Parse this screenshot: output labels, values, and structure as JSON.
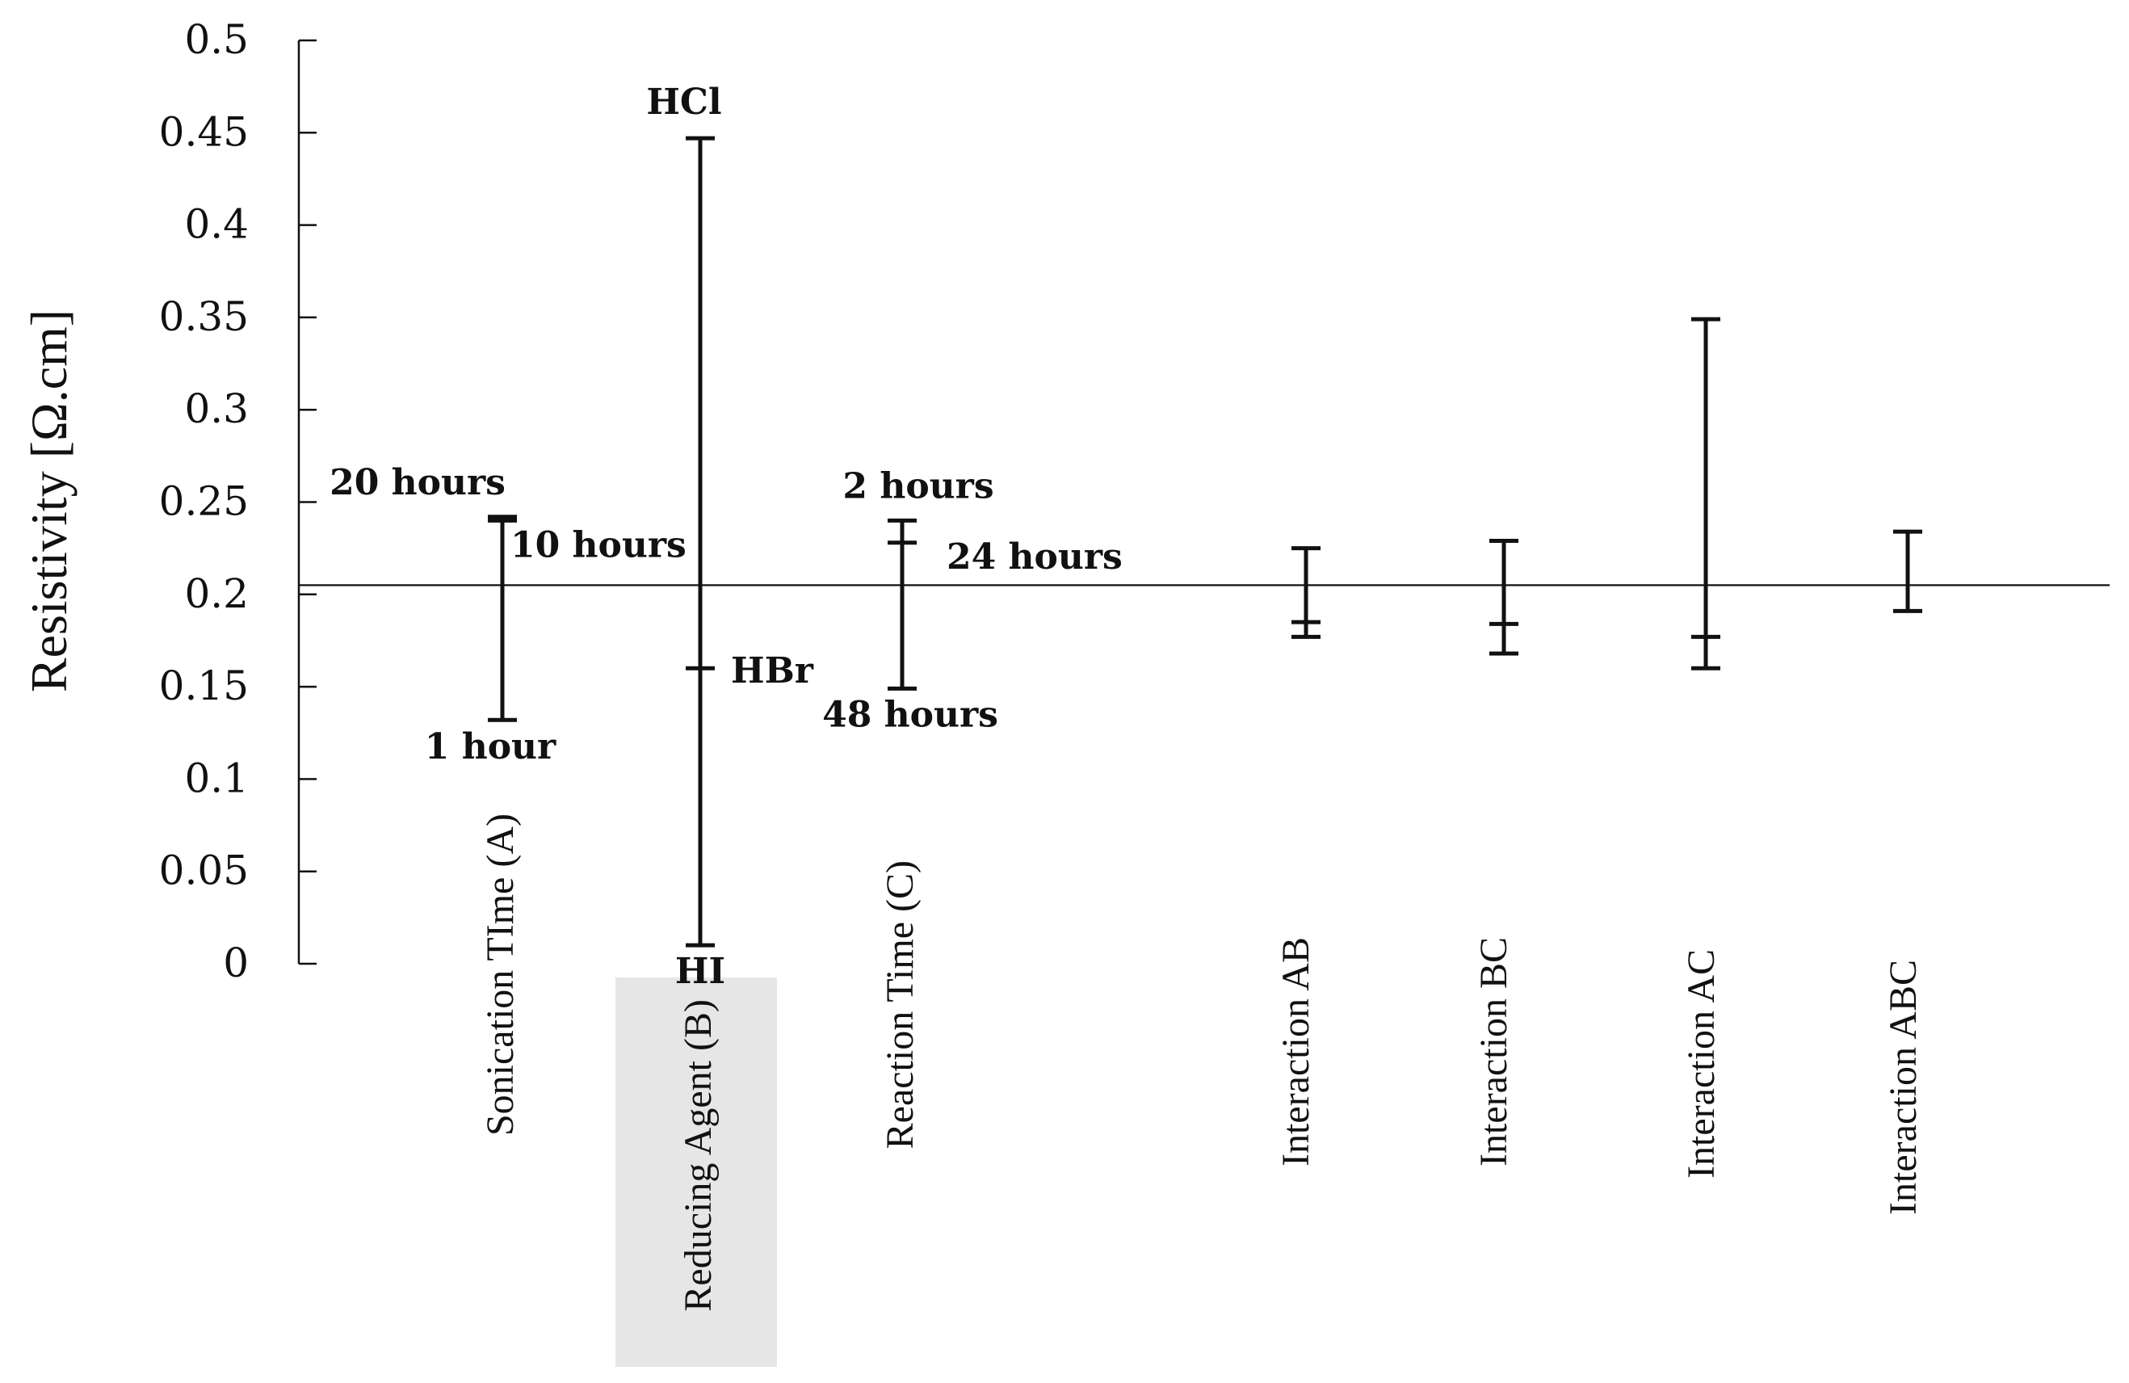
{
  "chart_data": {
    "type": "main-effects-interval",
    "ylabel": "Resistivity [Ω.cm]",
    "ylim": [
      0,
      0.5
    ],
    "yticks": [
      "0",
      "0.05",
      "0.1",
      "0.15",
      "0.2",
      "0.25",
      "0.3",
      "0.35",
      "0.4",
      "0.45",
      "0.5"
    ],
    "ytick_values": [
      0,
      0.05,
      0.1,
      0.15,
      0.2,
      0.25,
      0.3,
      0.35,
      0.4,
      0.45,
      0.5
    ],
    "reference_line": 0.205,
    "highlight_color": "#e6e6e6",
    "factors": [
      {
        "label": "Sonication TIme (A)",
        "highlighted": false,
        "levels": [
          {
            "label": "20 hours",
            "value": 0.242
          },
          {
            "label": "10 hours",
            "value": 0.24
          },
          {
            "label": "1 hour",
            "value": 0.132
          }
        ]
      },
      {
        "label": "Reducing Agent (B)",
        "highlighted": true,
        "levels": [
          {
            "label": "HCl",
            "value": 0.447
          },
          {
            "label": "HBr",
            "value": 0.16
          },
          {
            "label": "HI",
            "value": 0.01
          }
        ]
      },
      {
        "label": "Reaction Time (C)",
        "highlighted": false,
        "levels": [
          {
            "label": "2 hours",
            "value": 0.24
          },
          {
            "label": "24 hours",
            "value": 0.228
          },
          {
            "label": "48 hours",
            "value": 0.149
          }
        ]
      },
      {
        "label": "Interaction AB",
        "highlighted": false,
        "levels": [
          {
            "label": "",
            "value": 0.225
          },
          {
            "label": "",
            "value": 0.185
          },
          {
            "label": "",
            "value": 0.177
          }
        ]
      },
      {
        "label": "Interaction BC",
        "highlighted": false,
        "levels": [
          {
            "label": "",
            "value": 0.229
          },
          {
            "label": "",
            "value": 0.184
          },
          {
            "label": "",
            "value": 0.168
          }
        ]
      },
      {
        "label": "Interaction AC",
        "highlighted": false,
        "levels": [
          {
            "label": "",
            "value": 0.349
          },
          {
            "label": "",
            "value": 0.177
          },
          {
            "label": "",
            "value": 0.16
          }
        ]
      },
      {
        "label": "Interaction ABC",
        "highlighted": false,
        "levels": [
          {
            "label": "",
            "value": 0.234
          },
          {
            "label": "",
            "value": 0.191
          }
        ]
      }
    ]
  }
}
